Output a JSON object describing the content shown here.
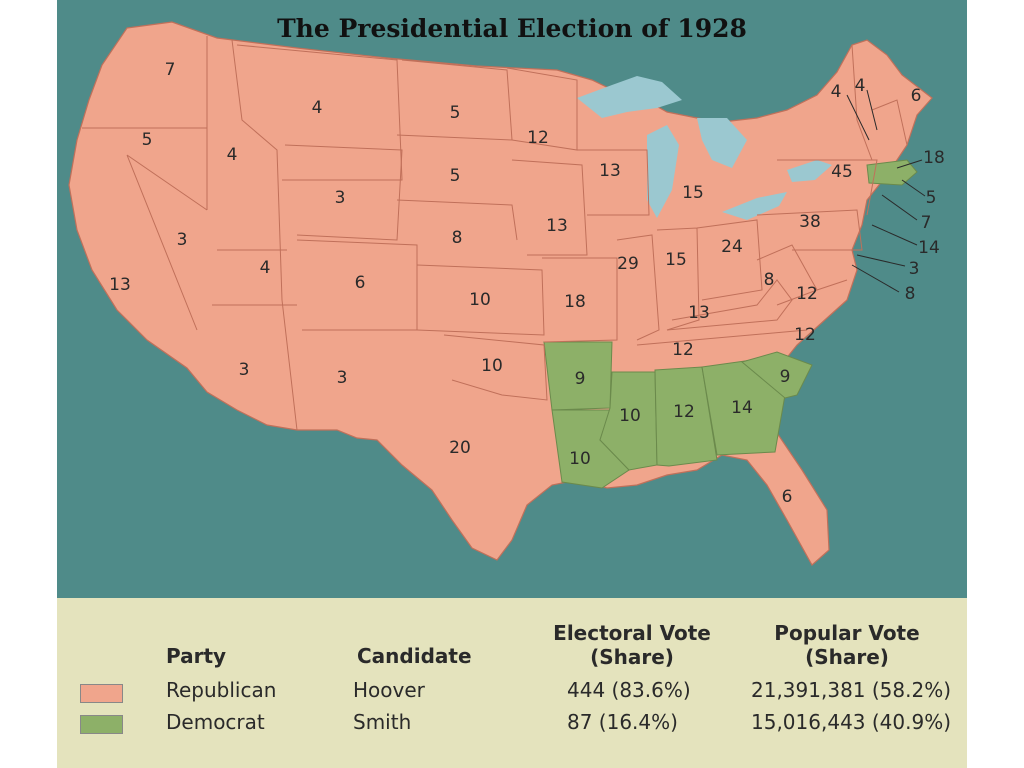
{
  "title": "The Presidential Election of 1928",
  "colors": {
    "republican": "#f0a58c",
    "democrat": "#8db068",
    "ocean": "#4f8b89",
    "lakes": "#9bc8d0",
    "legend_bg": "#e4e3bd",
    "state_border": "#c0705a"
  },
  "map": {
    "state_votes": [
      {
        "state": "WA",
        "votes": "7",
        "party": "republican"
      },
      {
        "state": "OR",
        "votes": "5",
        "party": "republican"
      },
      {
        "state": "CA",
        "votes": "13",
        "party": "republican"
      },
      {
        "state": "ID",
        "votes": "4",
        "party": "republican"
      },
      {
        "state": "NV",
        "votes": "3",
        "party": "republican"
      },
      {
        "state": "MT",
        "votes": "4",
        "party": "republican"
      },
      {
        "state": "WY",
        "votes": "3",
        "party": "republican"
      },
      {
        "state": "UT",
        "votes": "4",
        "party": "republican"
      },
      {
        "state": "AZ",
        "votes": "3",
        "party": "republican"
      },
      {
        "state": "CO",
        "votes": "6",
        "party": "republican"
      },
      {
        "state": "NM",
        "votes": "3",
        "party": "republican"
      },
      {
        "state": "ND",
        "votes": "5",
        "party": "republican"
      },
      {
        "state": "SD",
        "votes": "5",
        "party": "republican"
      },
      {
        "state": "NE",
        "votes": "8",
        "party": "republican"
      },
      {
        "state": "KS",
        "votes": "10",
        "party": "republican"
      },
      {
        "state": "OK",
        "votes": "10",
        "party": "republican"
      },
      {
        "state": "TX",
        "votes": "20",
        "party": "republican"
      },
      {
        "state": "MN",
        "votes": "12",
        "party": "republican"
      },
      {
        "state": "IA",
        "votes": "13",
        "party": "republican"
      },
      {
        "state": "MO",
        "votes": "18",
        "party": "republican"
      },
      {
        "state": "AR",
        "votes": "9",
        "party": "democrat"
      },
      {
        "state": "LA",
        "votes": "10",
        "party": "democrat"
      },
      {
        "state": "WI",
        "votes": "13",
        "party": "republican"
      },
      {
        "state": "IL",
        "votes": "29",
        "party": "republican"
      },
      {
        "state": "MI",
        "votes": "15",
        "party": "republican"
      },
      {
        "state": "IN",
        "votes": "15",
        "party": "republican"
      },
      {
        "state": "OH",
        "votes": "24",
        "party": "republican"
      },
      {
        "state": "KY",
        "votes": "13",
        "party": "republican"
      },
      {
        "state": "TN",
        "votes": "12",
        "party": "republican"
      },
      {
        "state": "MS",
        "votes": "10",
        "party": "democrat"
      },
      {
        "state": "AL",
        "votes": "12",
        "party": "democrat"
      },
      {
        "state": "GA",
        "votes": "14",
        "party": "democrat"
      },
      {
        "state": "FL",
        "votes": "6",
        "party": "republican"
      },
      {
        "state": "SC",
        "votes": "9",
        "party": "democrat"
      },
      {
        "state": "NC",
        "votes": "12",
        "party": "republican"
      },
      {
        "state": "VA",
        "votes": "12",
        "party": "republican"
      },
      {
        "state": "WV",
        "votes": "8",
        "party": "republican"
      },
      {
        "state": "PA",
        "votes": "38",
        "party": "republican"
      },
      {
        "state": "NY",
        "votes": "45",
        "party": "republican"
      },
      {
        "state": "VT",
        "votes": "4",
        "party": "republican"
      },
      {
        "state": "NH",
        "votes": "4",
        "party": "republican"
      },
      {
        "state": "ME",
        "votes": "6",
        "party": "republican"
      },
      {
        "state": "MA",
        "votes": "18",
        "party": "democrat"
      },
      {
        "state": "RI",
        "votes": "5",
        "party": "democrat"
      },
      {
        "state": "CT",
        "votes": "7",
        "party": "republican"
      },
      {
        "state": "NJ",
        "votes": "14",
        "party": "republican"
      },
      {
        "state": "DE",
        "votes": "3",
        "party": "republican"
      },
      {
        "state": "MD",
        "votes": "8",
        "party": "republican"
      }
    ]
  },
  "legend": {
    "headers": {
      "party": "Party",
      "candidate": "Candidate",
      "electoral_line1": "Electoral Vote",
      "electoral_line2": "(Share)",
      "popular_line1": "Popular Vote",
      "popular_line2": "(Share)"
    },
    "rows": [
      {
        "party": "Republican",
        "candidate": "Hoover",
        "electoral": "444 (83.6%)",
        "popular": "21,391,381 (58.2%)",
        "color": "#f0a58c"
      },
      {
        "party": "Democrat",
        "candidate": "Smith",
        "electoral": "87 (16.4%)",
        "popular": "15,016,443 (40.9%)",
        "color": "#8db068"
      }
    ]
  }
}
